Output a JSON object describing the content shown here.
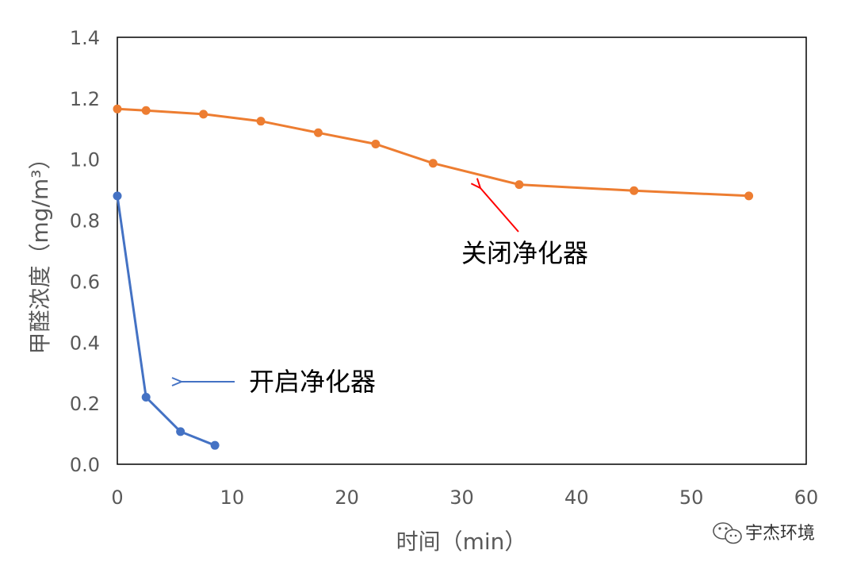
{
  "chart_data": {
    "type": "line",
    "xlabel": "时间（min）",
    "ylabel": "甲醛浓度（mg/m³）",
    "xlim": [
      0,
      60
    ],
    "ylim": [
      0,
      1.4
    ],
    "xticks": [
      0,
      10,
      20,
      30,
      40,
      50,
      60
    ],
    "yticks": [
      0.0,
      0.2,
      0.4,
      0.6,
      0.8,
      1.0,
      1.2,
      1.4
    ],
    "ytick_labels": [
      "0.0",
      "0.2",
      "0.4",
      "0.6",
      "0.8",
      "1.0",
      "1.2",
      "1.4"
    ],
    "grid": false,
    "series": [
      {
        "name": "开启净化器",
        "color": "#4472C4",
        "x": [
          0,
          2.5,
          5.5,
          8.5
        ],
        "y": [
          0.88,
          0.22,
          0.107,
          0.062
        ]
      },
      {
        "name": "关闭净化器",
        "color": "#ED7D31",
        "x": [
          0,
          2.5,
          7.5,
          12.5,
          17.5,
          22.5,
          27.5,
          35,
          45,
          55
        ],
        "y": [
          1.165,
          1.16,
          1.148,
          1.125,
          1.087,
          1.05,
          0.987,
          0.917,
          0.897,
          0.88
        ]
      }
    ],
    "annotations": [
      {
        "text": "开启净化器",
        "arrow_color": "#4472C4",
        "target_series": "开启净化器"
      },
      {
        "text": "关闭净化器",
        "arrow_color": "#FF0000",
        "target_series": "关闭净化器"
      }
    ]
  },
  "watermark": {
    "icon": "wechat-icon",
    "text": "宇杰环境"
  }
}
